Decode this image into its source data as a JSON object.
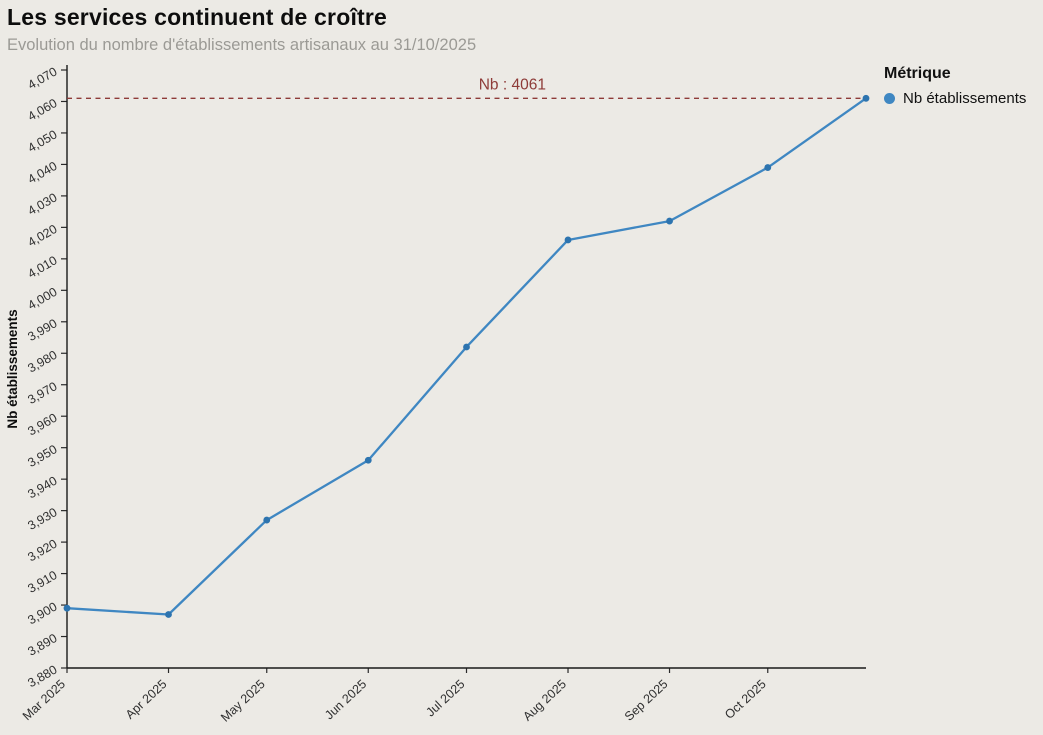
{
  "header": {
    "title": "Les services continuent de croître",
    "subtitle": "Evolution du nombre d'établissements artisanaux au 31/10/2025"
  },
  "legend": {
    "title": "Métrique",
    "items": [
      {
        "label": "Nb établissements",
        "color": "#3f87c2"
      }
    ]
  },
  "chart_data": {
    "type": "line",
    "title": "Les services continuent de croître",
    "subtitle": "Evolution du nombre d'établissements artisanaux au 31/10/2025",
    "xlabel": "",
    "ylabel": "Nb établissements",
    "ylim": [
      3880,
      4070
    ],
    "y_ticks": [
      3880,
      3890,
      3900,
      3910,
      3920,
      3930,
      3940,
      3950,
      3960,
      3970,
      3980,
      3990,
      4000,
      4010,
      4020,
      4030,
      4040,
      4050,
      4060,
      4070
    ],
    "x_domain": [
      0,
      244
    ],
    "x_ticks": [
      {
        "day": 0,
        "label": "Mar 2025"
      },
      {
        "day": 31,
        "label": "Apr 2025"
      },
      {
        "day": 61,
        "label": "May 2025"
      },
      {
        "day": 92,
        "label": "Jun 2025"
      },
      {
        "day": 122,
        "label": "Jul 2025"
      },
      {
        "day": 153,
        "label": "Aug 2025"
      },
      {
        "day": 184,
        "label": "Sep 2025"
      },
      {
        "day": 214,
        "label": "Oct 2025"
      }
    ],
    "series": [
      {
        "name": "Nb établissements",
        "line_color": "#3f87c2",
        "point_color": "#2d74af",
        "points": [
          {
            "date": "Mar 2025",
            "day": 0,
            "value": 3899
          },
          {
            "date": "Apr 2025",
            "day": 31,
            "value": 3897
          },
          {
            "date": "May 2025",
            "day": 61,
            "value": 3927
          },
          {
            "date": "Jun 2025",
            "day": 92,
            "value": 3946
          },
          {
            "date": "Jul 2025",
            "day": 122,
            "value": 3982
          },
          {
            "date": "Aug 2025",
            "day": 153,
            "value": 4016
          },
          {
            "date": "Sep 2025",
            "day": 184,
            "value": 4022
          },
          {
            "date": "Oct 2025",
            "day": 214,
            "value": 4039
          },
          {
            "date": "31/10/2025",
            "day": 244,
            "value": 4061
          }
        ]
      }
    ],
    "annotation": {
      "text": "Nb : 4061",
      "value": 4061,
      "color": "#8e3b38",
      "label_x_day": 136
    },
    "grid": false,
    "legend_position": "right",
    "legend_title": "Métrique"
  },
  "colors": {
    "background": "#eceae5",
    "axis": "#1a1a1a",
    "tick_label": "#303030",
    "subtitle": "#9b9a95"
  }
}
